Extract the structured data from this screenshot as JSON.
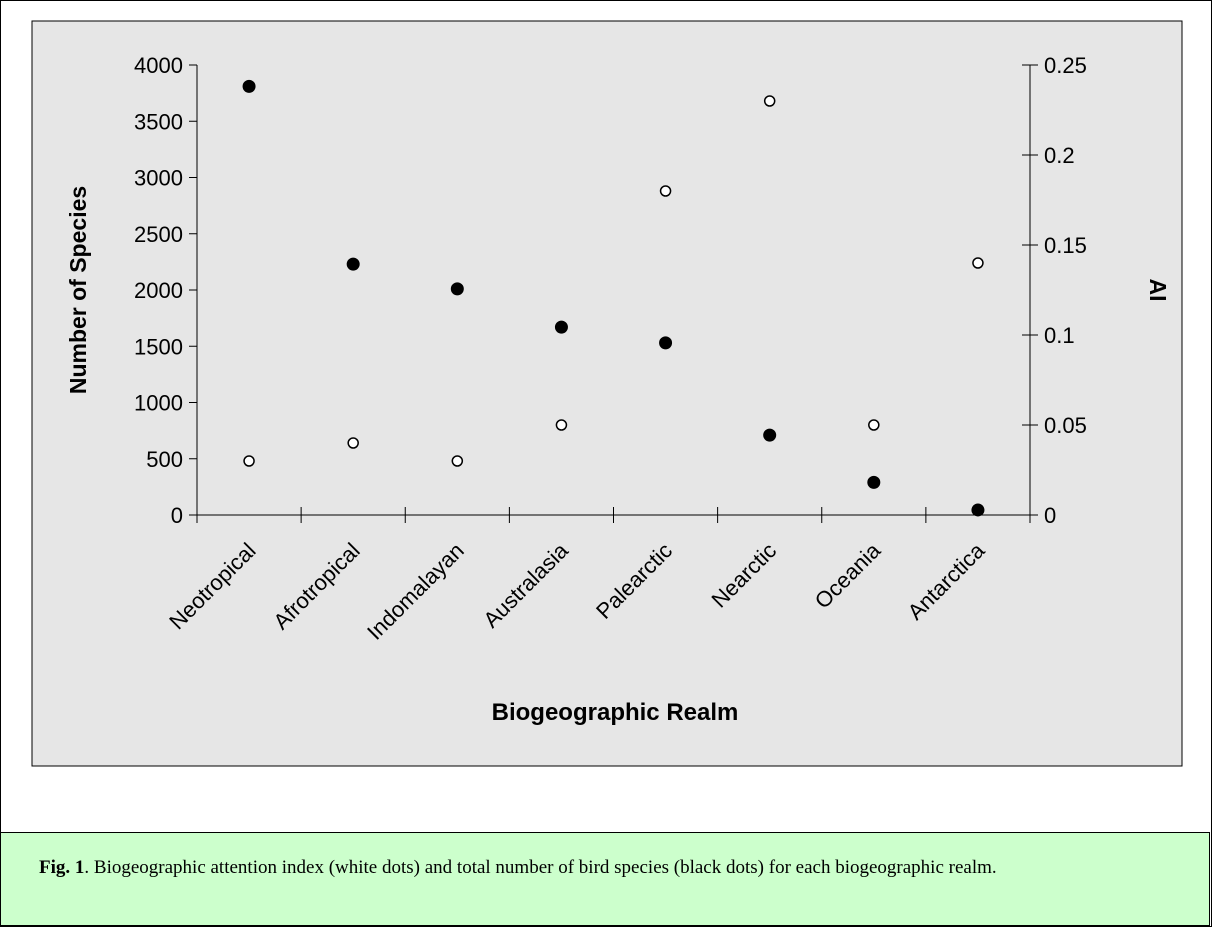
{
  "chart_data": {
    "type": "scatter",
    "categories": [
      "Neotropical",
      "Afrotropical",
      "Indomalayan",
      "Australasia",
      "Palearctic",
      "Nearctic",
      "Oceania",
      "Antarctica"
    ],
    "xlabel": "Biogeographic Realm",
    "ylabel": "Number of Species",
    "ylabel_right": "AI",
    "ylim": [
      0,
      4000
    ],
    "ylim_right": [
      0,
      0.25
    ],
    "yticks": [
      0,
      500,
      1000,
      1500,
      2000,
      2500,
      3000,
      3500,
      4000
    ],
    "yticks_right": [
      "0",
      "0.05",
      "0.1",
      "0.15",
      "0.2",
      "0.25"
    ],
    "grid": false,
    "background": "#e6e6e6",
    "series": [
      {
        "axis": "left",
        "marker": "filled",
        "color": "#000000",
        "values": [
          3810,
          2230,
          2010,
          1670,
          1530,
          710,
          290,
          45
        ]
      },
      {
        "axis": "right",
        "marker": "open",
        "color": "#ffffff",
        "values": [
          0.03,
          0.04,
          0.03,
          0.05,
          0.18,
          0.23,
          0.05,
          0.14
        ]
      }
    ]
  },
  "caption": {
    "label": "Fig. 1",
    "text": ". Biogeographic attention index (white dots) and total number of bird species (black dots) for each biogeographic realm."
  }
}
